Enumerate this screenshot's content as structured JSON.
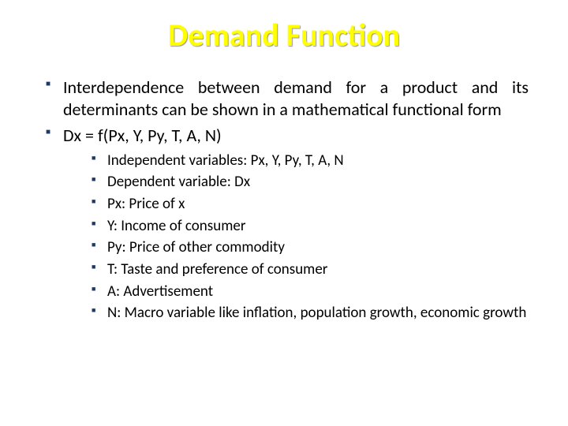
{
  "title": "Demand Function",
  "title_color": "#ffff00",
  "bullet_color": "#203864",
  "background_color": "#ffffff",
  "text_color": "#000000",
  "title_fontsize": 40,
  "level1_fontsize": 22,
  "level2_fontsize": 19,
  "bullets": [
    {
      "text": "Interdependence between demand for a product and its determinants can be shown in a mathematical functional form"
    },
    {
      "text": "Dx = f(Px, Y, Py, T, A, N)",
      "sub": [
        "Independent variables: Px, Y, Py, T, A, N",
        "Dependent variable: Dx",
        "Px: Price of x",
        "Y: Income of consumer",
        "Py: Price of other commodity",
        "T: Taste and preference of consumer",
        "A: Advertisement",
        "N: Macro variable like inflation, population growth, economic growth"
      ]
    }
  ]
}
